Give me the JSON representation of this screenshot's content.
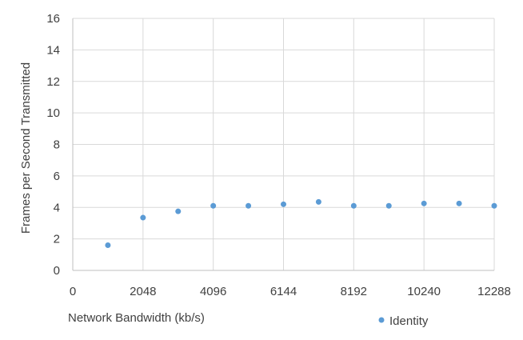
{
  "chart_data": {
    "type": "scatter",
    "xlabel": "Network Bandwidth (kb/s)",
    "ylabel": "Frames per Second Transmitted",
    "xlim": [
      0,
      12288
    ],
    "ylim": [
      0,
      16
    ],
    "x_ticks": [
      0,
      2048,
      4096,
      6144,
      8192,
      10240,
      12288
    ],
    "y_ticks": [
      0,
      2,
      4,
      6,
      8,
      10,
      12,
      14,
      16
    ],
    "grid": true,
    "legend_position": "bottom-right",
    "series": [
      {
        "name": "Identity",
        "color": "#5B9BD5",
        "points": [
          {
            "x": 1024,
            "y": 1.6
          },
          {
            "x": 2048,
            "y": 3.35
          },
          {
            "x": 3072,
            "y": 3.75
          },
          {
            "x": 4096,
            "y": 4.1
          },
          {
            "x": 5120,
            "y": 4.1
          },
          {
            "x": 6144,
            "y": 4.2
          },
          {
            "x": 7168,
            "y": 4.35
          },
          {
            "x": 8192,
            "y": 4.1
          },
          {
            "x": 9216,
            "y": 4.1
          },
          {
            "x": 10240,
            "y": 4.25
          },
          {
            "x": 11264,
            "y": 4.25
          },
          {
            "x": 12288,
            "y": 4.1
          }
        ]
      }
    ]
  }
}
